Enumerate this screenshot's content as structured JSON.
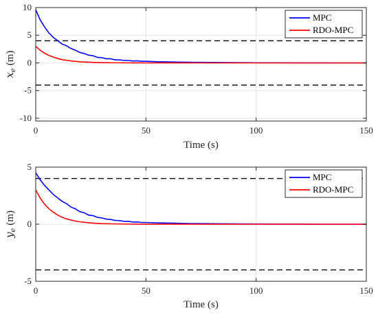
{
  "chart_data": [
    {
      "type": "line",
      "xlabel": "Time (s)",
      "ylabel": {
        "symbol": "x",
        "subscript": "e",
        "unit": "(m)"
      },
      "xlim": [
        0,
        150
      ],
      "ylim": [
        -10.5,
        10
      ],
      "xticks": [
        0,
        50,
        100,
        150
      ],
      "yticks": [
        -10,
        -5,
        0,
        5,
        10
      ],
      "grid": true,
      "legend_position": "top-right",
      "constraints": [
        4,
        -4
      ],
      "series": [
        {
          "name": "MPC",
          "color": "#0000ff",
          "x": [
            0,
            2,
            4,
            6,
            8,
            10,
            12,
            14,
            16,
            18,
            20,
            22,
            24,
            26,
            28,
            30,
            32,
            34,
            36,
            38,
            40,
            42,
            44,
            46,
            48,
            50,
            55,
            60,
            65,
            70,
            75,
            80,
            90,
            100,
            110,
            120,
            130,
            140,
            150
          ],
          "y": [
            9.6,
            7.8,
            6.5,
            5.4,
            4.6,
            4.0,
            3.4,
            3.1,
            2.6,
            2.3,
            1.9,
            1.7,
            1.4,
            1.3,
            1.0,
            0.95,
            0.75,
            0.75,
            0.55,
            0.55,
            0.45,
            0.45,
            0.35,
            0.38,
            0.3,
            0.3,
            0.22,
            0.2,
            0.15,
            0.12,
            0.1,
            0.08,
            0.05,
            0.03,
            0.02,
            0.01,
            0.01,
            0.0,
            0.0
          ]
        },
        {
          "name": "RDO-MPC",
          "color": "#ff0000",
          "x": [
            0,
            2,
            4,
            6,
            8,
            10,
            12,
            14,
            16,
            18,
            20,
            25,
            30,
            35,
            40,
            45,
            50,
            60,
            80,
            100,
            150
          ],
          "y": [
            3.0,
            2.3,
            1.75,
            1.35,
            1.05,
            0.8,
            0.6,
            0.47,
            0.36,
            0.28,
            0.21,
            0.11,
            0.05,
            0.03,
            0.015,
            0.008,
            0.004,
            0.001,
            0.0,
            0.0,
            0.0
          ]
        }
      ]
    },
    {
      "type": "line",
      "xlabel": "Time (s)",
      "ylabel": {
        "symbol": "y",
        "subscript": "e",
        "unit": "(m)"
      },
      "xlim": [
        0,
        150
      ],
      "ylim": [
        -5,
        5
      ],
      "xticks": [
        0,
        50,
        100,
        150
      ],
      "yticks": [
        -5,
        0,
        5
      ],
      "grid": true,
      "legend_position": "top-right",
      "constraints": [
        4,
        -4
      ],
      "series": [
        {
          "name": "MPC",
          "color": "#0000ff",
          "x": [
            0,
            2,
            4,
            6,
            8,
            10,
            12,
            14,
            16,
            18,
            20,
            22,
            24,
            26,
            28,
            30,
            32,
            34,
            36,
            38,
            40,
            42,
            44,
            46,
            48,
            50,
            55,
            60,
            65,
            70,
            75,
            80,
            90,
            100,
            110,
            120,
            130,
            140,
            150
          ],
          "y": [
            4.5,
            3.9,
            3.4,
            3.0,
            2.6,
            2.3,
            2.0,
            1.8,
            1.5,
            1.35,
            1.1,
            1.0,
            0.8,
            0.75,
            0.6,
            0.55,
            0.45,
            0.42,
            0.33,
            0.32,
            0.25,
            0.25,
            0.19,
            0.2,
            0.15,
            0.15,
            0.12,
            0.1,
            0.08,
            0.06,
            0.05,
            0.04,
            0.03,
            0.02,
            0.01,
            0.01,
            0.0,
            0.0,
            0.0
          ]
        },
        {
          "name": "RDO-MPC",
          "color": "#ff0000",
          "x": [
            0,
            2,
            4,
            6,
            8,
            10,
            12,
            14,
            16,
            18,
            20,
            25,
            30,
            35,
            40,
            45,
            50,
            60,
            80,
            100,
            150
          ],
          "y": [
            3.0,
            2.3,
            1.75,
            1.35,
            1.05,
            0.8,
            0.6,
            0.47,
            0.36,
            0.28,
            0.21,
            0.11,
            0.05,
            0.03,
            0.015,
            0.008,
            0.004,
            0.001,
            0.0,
            0.0,
            0.0
          ]
        }
      ]
    }
  ]
}
